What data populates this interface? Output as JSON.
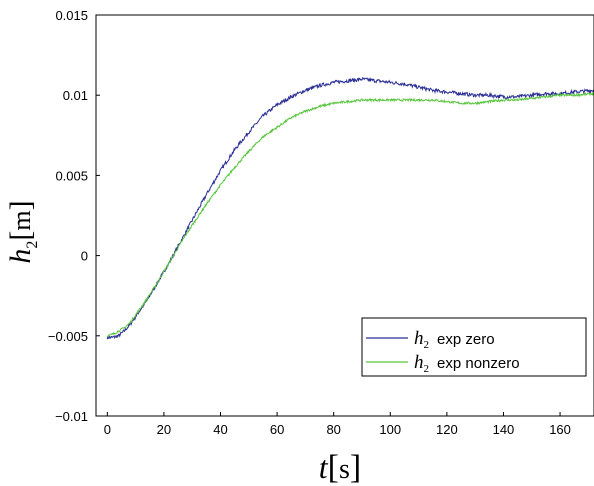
{
  "chart_data": {
    "type": "line",
    "title": "",
    "xlabel": {
      "symbol": "t",
      "unit": "s"
    },
    "ylabel": {
      "symbol": "h",
      "subscript": "2",
      "unit": "m"
    },
    "xlim": [
      -4,
      172
    ],
    "ylim": [
      -0.01,
      0.015
    ],
    "x_ticks": [
      0,
      20,
      40,
      60,
      80,
      100,
      120,
      140,
      160
    ],
    "y_ticks": [
      -0.01,
      -0.005,
      0,
      0.005,
      0.01,
      0.015
    ],
    "y_tick_labels": [
      "−0.01",
      "−0.005",
      "0",
      "0.005",
      "0.01",
      "0.015"
    ],
    "grid": false,
    "legend_position": "lower-right",
    "series": [
      {
        "name": "h2 exp zero",
        "legend_symbol": "h",
        "legend_subscript": "2",
        "legend_text": "exp zero",
        "color": "#2b2f95",
        "noise": 0.00011,
        "x": [
          0,
          2,
          4,
          6,
          8,
          10,
          14,
          18,
          22,
          26,
          30,
          35,
          40,
          45,
          50,
          55,
          60,
          65,
          70,
          75,
          80,
          85,
          90,
          95,
          100,
          105,
          110,
          115,
          120,
          125,
          130,
          135,
          140,
          145,
          150,
          155,
          160,
          165,
          172
        ],
        "y": [
          -0.0051,
          -0.0051,
          -0.005,
          -0.0047,
          -0.0043,
          -0.0038,
          -0.0028,
          -0.0016,
          -0.0004,
          0.0009,
          0.0022,
          0.0038,
          0.0053,
          0.0066,
          0.0077,
          0.0087,
          0.0094,
          0.0099,
          0.0103,
          0.0106,
          0.0108,
          0.0109,
          0.011,
          0.0109,
          0.0108,
          0.0107,
          0.0105,
          0.0103,
          0.0102,
          0.0101,
          0.01,
          0.01,
          0.0099,
          0.0099,
          0.01,
          0.0101,
          0.0101,
          0.0102,
          0.0103
        ]
      },
      {
        "name": "h2 exp nonzero",
        "legend_symbol": "h",
        "legend_subscript": "2",
        "legend_text": "exp nonzero",
        "color": "#57c53c",
        "noise": 7e-05,
        "x": [
          0,
          2,
          4,
          6,
          8,
          10,
          14,
          18,
          22,
          26,
          30,
          35,
          40,
          45,
          50,
          55,
          60,
          65,
          70,
          75,
          80,
          85,
          90,
          95,
          100,
          105,
          110,
          115,
          120,
          125,
          130,
          135,
          140,
          145,
          150,
          155,
          160,
          165,
          172
        ],
        "y": [
          -0.005,
          -0.0049,
          -0.0047,
          -0.0045,
          -0.0042,
          -0.0037,
          -0.0027,
          -0.0016,
          -0.0004,
          0.0008,
          0.0019,
          0.0032,
          0.0044,
          0.0055,
          0.0065,
          0.0074,
          0.008,
          0.0086,
          0.009,
          0.0093,
          0.0095,
          0.0096,
          0.0097,
          0.0097,
          0.0097,
          0.0097,
          0.0097,
          0.0097,
          0.0096,
          0.0095,
          0.0095,
          0.0096,
          0.0097,
          0.0097,
          0.0098,
          0.0099,
          0.01,
          0.01,
          0.0101
        ]
      }
    ]
  }
}
